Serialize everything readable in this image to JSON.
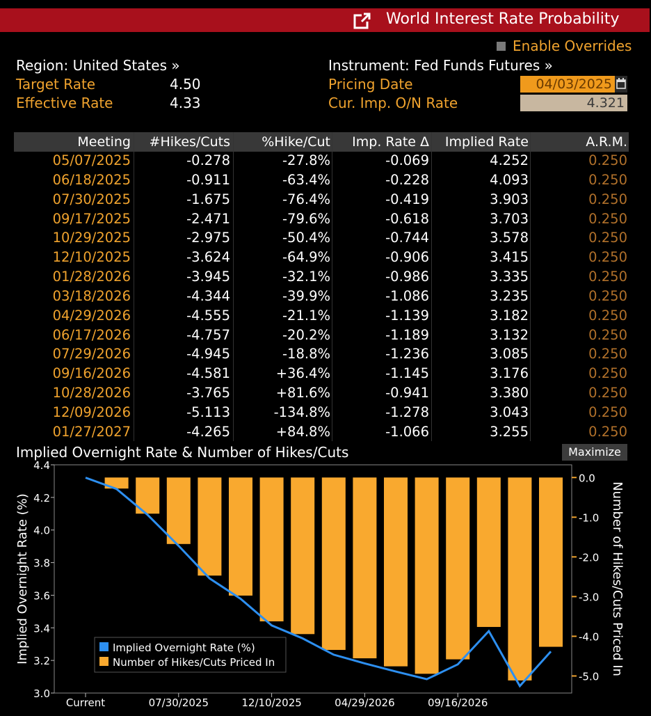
{
  "header": {
    "title": "World Interest Rate Probability",
    "enable_overrides": "Enable Overrides",
    "region": "Region: United States »",
    "instrument": "Instrument: Fed Funds Futures »",
    "target_rate_label": "Target Rate",
    "target_rate": "4.50",
    "effective_rate_label": "Effective Rate",
    "effective_rate": "4.33",
    "pricing_date_label": "Pricing Date",
    "pricing_date": "04/03/2025",
    "cur_imp_label": "Cur. Imp. O/N Rate",
    "cur_imp_rate": "4.321"
  },
  "table": {
    "columns": [
      "Meeting",
      "#Hikes/Cuts",
      "%Hike/Cut",
      "Imp. Rate Δ",
      "Implied Rate",
      "A.R.M."
    ],
    "rows": [
      [
        "05/07/2025",
        "-0.278",
        "-27.8%",
        "-0.069",
        "4.252",
        "0.250"
      ],
      [
        "06/18/2025",
        "-0.911",
        "-63.4%",
        "-0.228",
        "4.093",
        "0.250"
      ],
      [
        "07/30/2025",
        "-1.675",
        "-76.4%",
        "-0.419",
        "3.903",
        "0.250"
      ],
      [
        "09/17/2025",
        "-2.471",
        "-79.6%",
        "-0.618",
        "3.703",
        "0.250"
      ],
      [
        "10/29/2025",
        "-2.975",
        "-50.4%",
        "-0.744",
        "3.578",
        "0.250"
      ],
      [
        "12/10/2025",
        "-3.624",
        "-64.9%",
        "-0.906",
        "3.415",
        "0.250"
      ],
      [
        "01/28/2026",
        "-3.945",
        "-32.1%",
        "-0.986",
        "3.335",
        "0.250"
      ],
      [
        "03/18/2026",
        "-4.344",
        "-39.9%",
        "-1.086",
        "3.235",
        "0.250"
      ],
      [
        "04/29/2026",
        "-4.555",
        "-21.1%",
        "-1.139",
        "3.182",
        "0.250"
      ],
      [
        "06/17/2026",
        "-4.757",
        "-20.2%",
        "-1.189",
        "3.132",
        "0.250"
      ],
      [
        "07/29/2026",
        "-4.945",
        "-18.8%",
        "-1.236",
        "3.085",
        "0.250"
      ],
      [
        "09/16/2026",
        "-4.581",
        "+36.4%",
        "-1.145",
        "3.176",
        "0.250"
      ],
      [
        "10/28/2026",
        "-3.765",
        "+81.6%",
        "-0.941",
        "3.380",
        "0.250"
      ],
      [
        "12/09/2026",
        "-5.113",
        "-134.8%",
        "-1.278",
        "3.043",
        "0.250"
      ],
      [
        "01/27/2027",
        "-4.265",
        "+84.8%",
        "-1.066",
        "3.255",
        "0.250"
      ]
    ]
  },
  "chart": {
    "title": "Implied Overnight Rate & Number of Hikes/Cuts",
    "maximize_label": "Maximize"
  },
  "colors": {
    "title_bar": "#a8101c",
    "accent_orange": "#f0a32e",
    "bar": "#f9a92f",
    "line": "#2d8ff0",
    "arm": "#b0702a"
  },
  "chart_data": {
    "type": "bar+line",
    "title": "Implied Overnight Rate & Number of Hikes/Cuts",
    "categories": [
      "Current",
      "05/07/2025",
      "06/18/2025",
      "07/30/2025",
      "09/17/2025",
      "10/29/2025",
      "12/10/2025",
      "01/28/2026",
      "03/18/2026",
      "04/29/2026",
      "06/17/2026",
      "07/29/2026",
      "09/16/2026",
      "10/28/2026",
      "12/09/2026",
      "01/27/2027"
    ],
    "x_tick_labels": [
      "Current",
      "07/30/2025",
      "12/10/2025",
      "04/29/2026",
      "09/16/2026"
    ],
    "series": [
      {
        "name": "Implied Overnight Rate (%)",
        "type": "line",
        "axis": "left",
        "values": [
          4.321,
          4.252,
          4.093,
          3.903,
          3.703,
          3.578,
          3.415,
          3.335,
          3.235,
          3.182,
          3.132,
          3.085,
          3.176,
          3.38,
          3.043,
          3.255
        ]
      },
      {
        "name": "Number of Hikes/Cuts Priced In",
        "type": "bar",
        "axis": "right",
        "values": [
          0,
          -0.278,
          -0.911,
          -1.675,
          -2.471,
          -2.975,
          -3.624,
          -3.945,
          -4.344,
          -4.555,
          -4.757,
          -4.945,
          -4.581,
          -3.765,
          -5.113,
          -4.265
        ]
      }
    ],
    "ylabel": "Implied Overnight Rate (%)",
    "ylim": [
      3.0,
      4.4
    ],
    "yticks": [
      "4.4",
      "4.2",
      "4.0",
      "3.8",
      "3.6",
      "3.4",
      "3.2",
      "3.0"
    ],
    "y2label": "Number of Hikes/Cuts Priced In",
    "y2lim": [
      -5.43,
      0.32
    ],
    "y2ticks": [
      "0.0",
      "-1.0",
      "-2.0",
      "-3.0",
      "-4.0",
      "-5.0"
    ],
    "legend_position": "bottom-left",
    "grid": false
  }
}
